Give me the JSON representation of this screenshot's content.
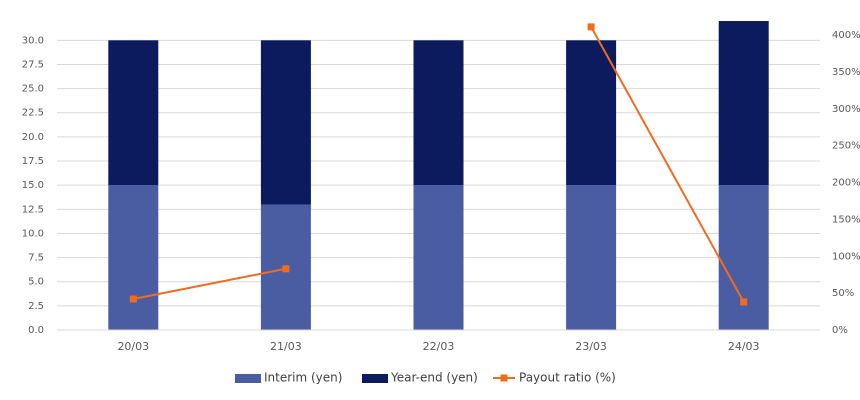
{
  "chart_data": {
    "type": "stacked-bar-line",
    "categories": [
      "20/03",
      "21/03",
      "22/03",
      "23/03",
      "24/03"
    ],
    "series": [
      {
        "name": "Interim (yen)",
        "color": "#4a5da3",
        "values": [
          15,
          13,
          15,
          15,
          15
        ]
      },
      {
        "name": "Year-end (yen)",
        "color": "#0c1a5e",
        "values": [
          15,
          17,
          15,
          15,
          17
        ]
      },
      {
        "name": "Payout ratio (%)",
        "color": "#f26b1d",
        "axis": "y2",
        "values": [
          42,
          83,
          null,
          411,
          38
        ]
      }
    ],
    "ylim": [
      0,
      32
    ],
    "yticks": [
      {
        "value": 0,
        "label": "0.0"
      },
      2.5,
      {
        "value": 5,
        "label": "5.0"
      },
      7.5,
      {
        "value": 10,
        "label": "10.0"
      },
      12.5,
      {
        "value": 15,
        "label": "15.0"
      },
      17.5,
      {
        "value": 20,
        "label": "20.0"
      },
      22.5,
      {
        "value": 25,
        "label": "25.0"
      },
      27.5,
      {
        "value": 30,
        "label": "30.0"
      }
    ],
    "y2lim": [
      0,
      419
    ],
    "y2ticks": [
      {
        "value": 0,
        "label": "0%"
      },
      {
        "value": 50,
        "label": "50%"
      },
      {
        "value": 100,
        "label": "100%"
      },
      {
        "value": 150,
        "label": "150%"
      },
      {
        "value": 200,
        "label": "200%"
      },
      {
        "value": 250,
        "label": "250%"
      },
      {
        "value": 300,
        "label": "300%"
      },
      {
        "value": 350,
        "label": "350%"
      },
      {
        "value": 400,
        "label": "400%"
      }
    ],
    "grid": true
  }
}
